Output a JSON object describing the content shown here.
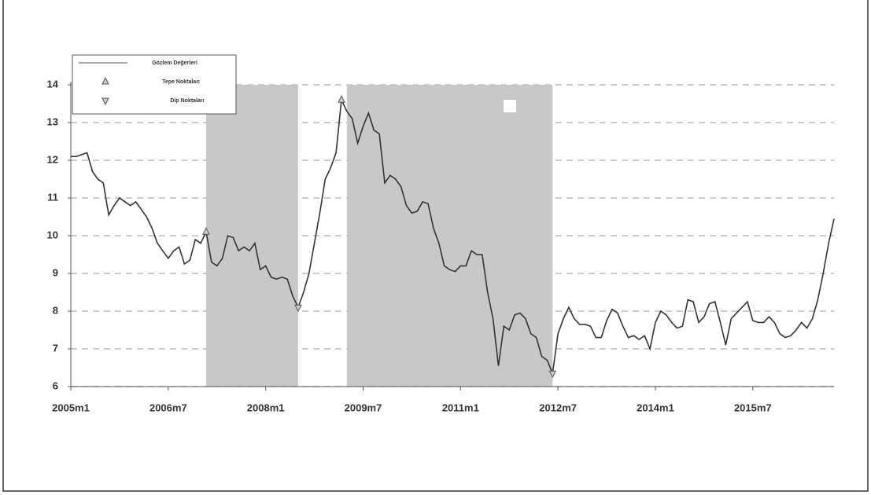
{
  "chart_data": {
    "type": "line",
    "series": [
      {
        "name": "Gözlem Değerleri",
        "color": "#333333",
        "x": [
          0,
          1,
          2,
          3,
          4,
          5,
          6,
          7,
          8,
          9,
          10,
          11,
          12,
          13,
          14,
          15,
          16,
          17,
          18,
          19,
          20,
          21,
          22,
          23,
          24,
          25,
          26,
          27,
          28,
          29,
          30,
          31,
          32,
          33,
          34,
          35,
          36,
          37,
          38,
          39,
          40,
          41,
          42,
          43,
          44,
          45,
          46,
          47,
          48,
          49,
          50,
          51,
          52,
          53,
          54,
          55,
          56,
          57,
          58,
          59,
          60,
          61,
          62,
          63,
          64,
          65,
          66,
          67,
          68,
          69,
          70,
          71,
          72,
          73,
          74,
          75,
          76,
          77,
          78,
          79,
          80,
          81,
          82,
          83,
          84,
          85,
          86,
          87,
          88,
          89,
          90,
          91,
          92,
          93,
          94,
          95,
          96,
          97,
          98,
          99,
          100,
          101,
          102,
          103,
          104,
          105,
          106,
          107,
          108,
          109,
          110,
          111,
          112,
          113,
          114,
          115,
          116,
          117,
          118,
          119,
          120,
          121,
          122,
          123,
          124,
          125,
          126,
          127,
          128,
          129,
          130,
          131,
          132,
          133,
          134,
          135,
          136,
          137,
          138,
          139,
          140,
          141
        ],
        "values": [
          12.1,
          12.1,
          12.15,
          12.2,
          11.7,
          11.5,
          11.4,
          10.55,
          10.8,
          11.0,
          10.9,
          10.8,
          10.9,
          10.7,
          10.5,
          10.2,
          9.8,
          9.6,
          9.4,
          9.6,
          9.7,
          9.25,
          9.35,
          9.9,
          9.8,
          10.1,
          9.3,
          9.2,
          9.4,
          10.0,
          9.95,
          9.6,
          9.7,
          9.6,
          9.8,
          9.1,
          9.2,
          8.9,
          8.85,
          8.9,
          8.85,
          8.4,
          8.1,
          8.5,
          9.0,
          9.8,
          10.6,
          11.5,
          11.8,
          12.2,
          13.6,
          13.3,
          13.1,
          12.45,
          12.9,
          13.25,
          12.8,
          12.7,
          11.4,
          11.6,
          11.5,
          11.3,
          10.8,
          10.6,
          10.65,
          10.9,
          10.85,
          10.2,
          9.8,
          9.2,
          9.1,
          9.05,
          9.2,
          9.2,
          9.6,
          9.5,
          9.5,
          8.5,
          7.8,
          6.55,
          7.6,
          7.5,
          7.9,
          7.95,
          7.8,
          7.4,
          7.3,
          6.8,
          6.7,
          6.35,
          7.4,
          7.8,
          8.1,
          7.8,
          7.65,
          7.65,
          7.6,
          7.3,
          7.3,
          7.75,
          8.05,
          7.95,
          7.6,
          7.3,
          7.35,
          7.25,
          7.35,
          7.0,
          7.7,
          8.0,
          7.9,
          7.7,
          7.55,
          7.6,
          8.3,
          8.25,
          7.7,
          7.85,
          8.2,
          8.25,
          7.7,
          7.1,
          7.8,
          7.95,
          8.1,
          8.25,
          7.75,
          7.7,
          7.7,
          7.85,
          7.7,
          7.4,
          7.3,
          7.35,
          7.5,
          7.7,
          7.55,
          7.8,
          8.3,
          9.0,
          9.8,
          10.45
        ]
      },
      {
        "name": "Tepe Noktaları",
        "color": "#555555",
        "marker": "triangle-up",
        "x": [
          25,
          50
        ],
        "values": [
          10.1,
          13.6
        ]
      },
      {
        "name": "Dip Noktaları",
        "color": "#555555",
        "marker": "triangle-down",
        "x": [
          42,
          89
        ],
        "values": [
          8.1,
          6.35
        ]
      }
    ],
    "shaded_regions": [
      [
        25,
        42
      ],
      [
        51,
        89
      ]
    ],
    "shade_color": "#c8c8c8",
    "xlim": [
      0,
      141
    ],
    "xticks": [
      {
        "value": 0,
        "label": "2005m1"
      },
      {
        "value": 18,
        "label": "2006m7"
      },
      {
        "value": 36,
        "label": "2008m1"
      },
      {
        "value": 54,
        "label": "2009m7"
      },
      {
        "value": 72,
        "label": "2011m1"
      },
      {
        "value": 90,
        "label": "2012m7"
      },
      {
        "value": 108,
        "label": "2014m1"
      },
      {
        "value": 126,
        "label": "2015m7"
      }
    ],
    "ylim": [
      6,
      14
    ],
    "yticks": [
      6,
      7,
      8,
      9,
      10,
      11,
      12,
      13,
      14
    ],
    "grid": true,
    "legend": "top-left"
  }
}
